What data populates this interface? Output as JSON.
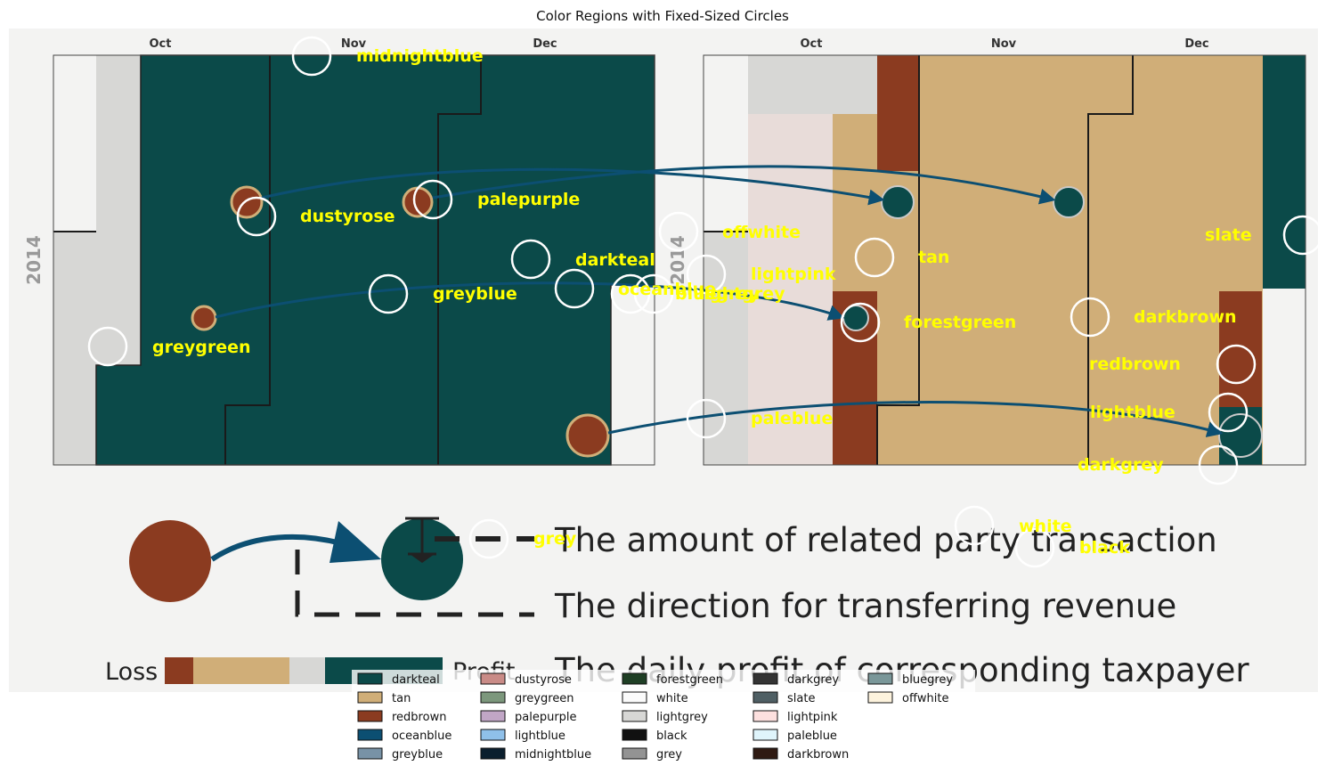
{
  "title": "Color Regions with Fixed-Sized Circles",
  "months": [
    "Oct",
    "Nov",
    "Dec"
  ],
  "year": "2014",
  "legend_texts": [
    "The amount of related party transaction",
    "The direction for transferring revenue",
    "The daily profit of corresponding taxpayer"
  ],
  "scale": {
    "loss": "Loss",
    "profit": "Profit"
  },
  "region_labels": [
    "midnightblue",
    "dustyrose",
    "palepurple",
    "darkteal",
    "greyblue",
    "greygreen",
    "oceanblue",
    "bluegrey",
    "lightgrey",
    "offwhite",
    "lightpink",
    "tan",
    "forestgreen",
    "paleblue",
    "slate",
    "darkbrown",
    "redbrown",
    "lightblue",
    "darkgrey",
    "white",
    "black",
    "grey"
  ],
  "color_legend": [
    {
      "name": "darkteal",
      "color": "#0b4a49"
    },
    {
      "name": "tan",
      "color": "#d0ae78"
    },
    {
      "name": "redbrown",
      "color": "#8b3b20"
    },
    {
      "name": "oceanblue",
      "color": "#0c4f72"
    },
    {
      "name": "greyblue",
      "color": "#7892a6"
    },
    {
      "name": "dustyrose",
      "color": "#c98b87"
    },
    {
      "name": "greygreen",
      "color": "#7c977c"
    },
    {
      "name": "palepurple",
      "color": "#c1a6c6"
    },
    {
      "name": "lightblue",
      "color": "#8fc0e9"
    },
    {
      "name": "midnightblue",
      "color": "#0b1f2e"
    },
    {
      "name": "forestgreen",
      "color": "#1f3f25"
    },
    {
      "name": "white",
      "color": "#fbfbfb"
    },
    {
      "name": "lightgrey",
      "color": "#d7d7d5"
    },
    {
      "name": "black",
      "color": "#111111"
    },
    {
      "name": "grey",
      "color": "#939393"
    },
    {
      "name": "darkgrey",
      "color": "#333333"
    },
    {
      "name": "slate",
      "color": "#4f5f64"
    },
    {
      "name": "lightpink",
      "color": "#fde0df"
    },
    {
      "name": "paleblue",
      "color": "#dff4fb"
    },
    {
      "name": "darkbrown",
      "color": "#2f1a12"
    },
    {
      "name": "bluegrey",
      "color": "#7a9799"
    },
    {
      "name": "offwhite",
      "color": "#fdf3dd"
    }
  ]
}
